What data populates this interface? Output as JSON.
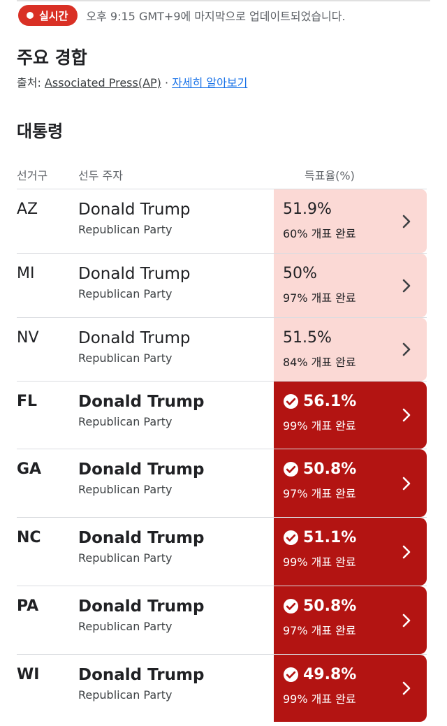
{
  "live": {
    "badge": "실시간",
    "updated": "오후 9:15 GMT+9에 마지막으로 업데이트되었습니다."
  },
  "title": "주요 경합",
  "source": {
    "prefix": "출처: ",
    "name": "Associated Press(AP)",
    "separator": " · ",
    "learn_more": "자세히 알아보기"
  },
  "section": "대통령",
  "columns": {
    "district": "선거구",
    "leader": "선두 주자",
    "vote_share": "득표율(%)"
  },
  "colors": {
    "live": "#d93025",
    "leading_bg": "#fbd9d5",
    "winner_bg": "#b31412",
    "link": "#1a73e8"
  },
  "rows": [
    {
      "state": "AZ",
      "candidate": "Donald Trump",
      "party": "Republican Party",
      "pct": "51.9%",
      "reported": "60% 개표 완료",
      "called": false
    },
    {
      "state": "MI",
      "candidate": "Donald Trump",
      "party": "Republican Party",
      "pct": "50%",
      "reported": "97% 개표 완료",
      "called": false
    },
    {
      "state": "NV",
      "candidate": "Donald Trump",
      "party": "Republican Party",
      "pct": "51.5%",
      "reported": "84% 개표 완료",
      "called": false
    },
    {
      "state": "FL",
      "candidate": "Donald Trump",
      "party": "Republican Party",
      "pct": "56.1%",
      "reported": "99% 개표 완료",
      "called": true
    },
    {
      "state": "GA",
      "candidate": "Donald Trump",
      "party": "Republican Party",
      "pct": "50.8%",
      "reported": "97% 개표 완료",
      "called": true
    },
    {
      "state": "NC",
      "candidate": "Donald Trump",
      "party": "Republican Party",
      "pct": "51.1%",
      "reported": "99% 개표 완료",
      "called": true
    },
    {
      "state": "PA",
      "candidate": "Donald Trump",
      "party": "Republican Party",
      "pct": "50.8%",
      "reported": "97% 개표 완료",
      "called": true
    },
    {
      "state": "WI",
      "candidate": "Donald Trump",
      "party": "Republican Party",
      "pct": "49.8%",
      "reported": "99% 개표 완료",
      "called": true
    }
  ]
}
